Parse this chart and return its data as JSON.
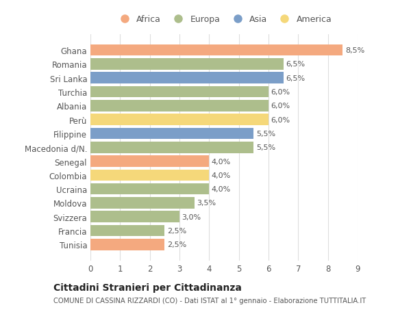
{
  "countries": [
    "Ghana",
    "Romania",
    "Sri Lanka",
    "Turchia",
    "Albania",
    "Perù",
    "Filippine",
    "Macedonia d/N.",
    "Senegal",
    "Colombia",
    "Ucraina",
    "Moldova",
    "Svizzera",
    "Francia",
    "Tunisia"
  ],
  "values": [
    8.5,
    6.5,
    6.5,
    6.0,
    6.0,
    6.0,
    5.5,
    5.5,
    4.0,
    4.0,
    4.0,
    3.5,
    3.0,
    2.5,
    2.5
  ],
  "continents": [
    "Africa",
    "Europa",
    "Asia",
    "Europa",
    "Europa",
    "America",
    "Asia",
    "Europa",
    "Africa",
    "America",
    "Europa",
    "Europa",
    "Europa",
    "Europa",
    "Africa"
  ],
  "continent_colors": {
    "Africa": "#F4A97F",
    "Europa": "#ADBE8C",
    "Asia": "#7B9EC8",
    "America": "#F5D87A"
  },
  "legend_order": [
    "Africa",
    "Europa",
    "Asia",
    "America"
  ],
  "title": "Cittadini Stranieri per Cittadinanza",
  "subtitle": "COMUNE DI CASSINA RIZZARDI (CO) - Dati ISTAT al 1° gennaio - Elaborazione TUTTITALIA.IT",
  "xlim": [
    0,
    9
  ],
  "xticks": [
    0,
    1,
    2,
    3,
    4,
    5,
    6,
    7,
    8,
    9
  ],
  "bg_color": "#ffffff",
  "bar_bg_color": "#ffffff",
  "grid_color": "#dddddd",
  "text_color": "#555555",
  "label_color": "#555555"
}
